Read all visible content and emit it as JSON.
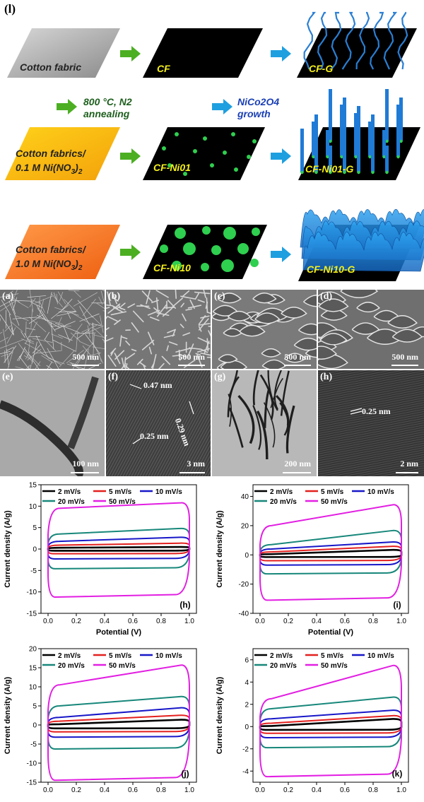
{
  "schematic": {
    "label": "(l)",
    "row1": {
      "start": "Cotton fabric",
      "mid": "CF",
      "end": "CF-G"
    },
    "row2": {
      "start_line1": "Cotton fabrics/",
      "start_line2": "0.1 M Ni(NO3)2",
      "mid": "CF-Ni01",
      "end": "CF-Ni01-G"
    },
    "row3": {
      "start_line1": "Cotton fabrics/",
      "start_line2": "1.0 M Ni(NO3)2",
      "mid": "CF-Ni10",
      "end": "CF-Ni10-G"
    },
    "step1_line1": "800 °C, N2",
    "step1_line2": "annealing",
    "step2_line1": "NiCo2O4",
    "step2_line2": "growth",
    "colors": {
      "green_arrow": "#4caf22",
      "blue_arrow": "#1e9fe0",
      "nanowire": "#2a7fd4",
      "particle": "#2fcf4f",
      "label_yellow": "#f5f01a",
      "step1_text": "#1d5e1d",
      "step2_text": "#1a3fb5"
    }
  },
  "micrographs": {
    "a": {
      "label": "(a)",
      "scale": "500 nm"
    },
    "b": {
      "label": "(b)",
      "scale": "500 nm"
    },
    "c": {
      "label": "(c)",
      "scale": "500 nm"
    },
    "d": {
      "label": "(d)",
      "scale": "500 nm"
    },
    "e": {
      "label": "(e)",
      "scale": "100 nm"
    },
    "f": {
      "label": "(f)",
      "scale": "3 nm",
      "d1": "0.47 nm",
      "d2": "0.29 nm",
      "d3": "0.25 nm"
    },
    "g": {
      "label": "(g)",
      "scale": "200 nm"
    },
    "h": {
      "label": "(h)",
      "scale": "2 nm",
      "d1": "0.25 nm"
    }
  },
  "chart_data": [
    {
      "type": "line",
      "panel": "(h)",
      "xlabel": "Potential (V)",
      "ylabel": "Current density (A/g)",
      "xlim": [
        -0.05,
        1.05
      ],
      "ylim": [
        -15,
        15
      ],
      "xticks": [
        "0.0",
        "0.2",
        "0.4",
        "0.6",
        "0.8",
        "1.0"
      ],
      "yticks": [
        "-15",
        "-10",
        "-5",
        "0",
        "5",
        "10",
        "15"
      ],
      "legend": [
        "2 mV/s",
        "5 mV/s",
        "10 mV/s",
        "20 mV/s",
        "50 mV/s"
      ],
      "series": [
        {
          "name": "2 mV/s",
          "top_left": 0.3,
          "top_right": 0.5,
          "bottom": -0.4
        },
        {
          "name": "5 mV/s",
          "top_left": 0.9,
          "top_right": 1.4,
          "bottom": -1.1
        },
        {
          "name": "10 mV/s",
          "top_left": 1.8,
          "top_right": 2.8,
          "bottom": -2.3
        },
        {
          "name": "20 mV/s",
          "top_left": 3.5,
          "top_right": 4.9,
          "bottom": -4.6
        },
        {
          "name": "50 mV/s",
          "top_left": 9.5,
          "top_right": 11.0,
          "bottom": -11.2
        }
      ]
    },
    {
      "type": "line",
      "panel": "(i)",
      "xlabel": "Potential (V)",
      "ylabel": "Current density (A/g)",
      "xlim": [
        -0.05,
        1.05
      ],
      "ylim": [
        -40,
        48
      ],
      "xticks": [
        "0.0",
        "0.2",
        "0.4",
        "0.6",
        "0.8",
        "1.0"
      ],
      "yticks": [
        "-40",
        "-20",
        "0",
        "20",
        "40"
      ],
      "legend": [
        "2 mV/s",
        "5 mV/s",
        "10 mV/s",
        "20 mV/s",
        "50 mV/s"
      ],
      "series": [
        {
          "name": "2 mV/s",
          "top_left": 0.5,
          "top_right": 3.5,
          "bottom": -1.5
        },
        {
          "name": "5 mV/s",
          "top_left": 2,
          "top_right": 6,
          "bottom": -4
        },
        {
          "name": "10 mV/s",
          "top_left": 4,
          "top_right": 9,
          "bottom": -7
        },
        {
          "name": "20 mV/s",
          "top_left": 7,
          "top_right": 17,
          "bottom": -13
        },
        {
          "name": "50 mV/s",
          "top_left": 20,
          "top_right": 35,
          "bottom": -31
        }
      ]
    },
    {
      "type": "line",
      "panel": "(j)",
      "xlabel": "",
      "ylabel": "Current density (A/g)",
      "xlim": [
        -0.05,
        1.05
      ],
      "ylim": [
        -15,
        20
      ],
      "xticks": [
        "0.0",
        "0.2",
        "0.4",
        "0.6",
        "0.8",
        "1.0"
      ],
      "yticks": [
        "-15",
        "-10",
        "-5",
        "0",
        "5",
        "10",
        "15",
        "20"
      ],
      "legend": [
        "2 mV/s",
        "5 mV/s",
        "10 mV/s",
        "20 mV/s",
        "50 mV/s"
      ],
      "series": [
        {
          "name": "2 mV/s",
          "top_left": 0.2,
          "top_right": 1.4,
          "bottom": -0.9
        },
        {
          "name": "5 mV/s",
          "top_left": 1.0,
          "top_right": 2.6,
          "bottom": -1.8
        },
        {
          "name": "10 mV/s",
          "top_left": 2.0,
          "top_right": 4.6,
          "bottom": -3.2
        },
        {
          "name": "20 mV/s",
          "top_left": 5.0,
          "top_right": 7.6,
          "bottom": -6.3
        },
        {
          "name": "50 mV/s",
          "top_left": 10.5,
          "top_right": 16.0,
          "bottom": -14.5
        }
      ]
    },
    {
      "type": "line",
      "panel": "(k)",
      "xlabel": "",
      "ylabel": "Current density (A/g)",
      "xlim": [
        -0.05,
        1.05
      ],
      "ylim": [
        -5,
        7
      ],
      "xticks": [
        "0.0",
        "0.2",
        "0.4",
        "0.6",
        "0.8",
        "1.0"
      ],
      "yticks": [
        "-4",
        "-2",
        "0",
        "2",
        "4",
        "6"
      ],
      "legend": [
        "2 mV/s",
        "5 mV/s",
        "10 mV/s",
        "20 mV/s",
        "50 mV/s"
      ],
      "series": [
        {
          "name": "2 mV/s",
          "top_left": 0.05,
          "top_right": 0.7,
          "bottom": -0.3
        },
        {
          "name": "5 mV/s",
          "top_left": 0.3,
          "top_right": 1.0,
          "bottom": -0.6
        },
        {
          "name": "10 mV/s",
          "top_left": 0.7,
          "top_right": 1.5,
          "bottom": -1.0
        },
        {
          "name": "20 mV/s",
          "top_left": 1.6,
          "top_right": 2.7,
          "bottom": -1.9
        },
        {
          "name": "50 mV/s",
          "top_left": 2.5,
          "top_right": 5.6,
          "bottom": -4.5
        }
      ]
    }
  ],
  "series_colors": [
    "#000000",
    "#e3201e",
    "#1717c8",
    "#17877a",
    "#e21fe2"
  ]
}
